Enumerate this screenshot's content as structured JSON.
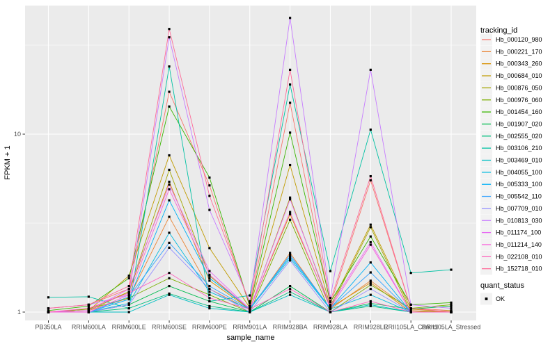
{
  "chart_data": {
    "type": "line",
    "title": "",
    "xlabel": "sample_name",
    "ylabel": "FPKM + 1",
    "y_scale": "log10",
    "ylim_approx": [
      0.9,
      53
    ],
    "grid": "on",
    "panel_bg": "#EBEBEB",
    "grid_color": "#FFFFFF",
    "tick_text_color": "#4D4D4D",
    "axis_title_color": "#000000",
    "legend_key_bg": "#F2F2F2",
    "point_color": "#000000",
    "point_shape": "filled-square",
    "legend_position": "right",
    "y_ticks": [
      {
        "label": "1",
        "value": 1
      },
      {
        "label": "10",
        "value": 10
      }
    ],
    "y_minor_gridlines": [
      3.162,
      31.623
    ],
    "x_categories": [
      "PB350LA",
      "RRIM600LA",
      "RRIM600LE",
      "RRIM600SE",
      "RRIM600PE",
      "RRIM901LA",
      "RRIM928BA",
      "RRIM928LA",
      "RRIM928LE",
      "RRII105LA_Control",
      "RRII105LA_Stressed"
    ],
    "legend_title": "tracking_id",
    "legend2_title": "quant_status",
    "legend2_items": [
      {
        "label": "OK",
        "symbol": "black-square"
      }
    ],
    "series": [
      {
        "name": "Hb_000120_980",
        "color": "#F8766D",
        "values": [
          1.05,
          1.1,
          1.35,
          17.3,
          5.15,
          1.08,
          15.0,
          1.1,
          5.5,
          1.05,
          1.02
        ]
      },
      {
        "name": "Hb_000221_170",
        "color": "#EA8331",
        "values": [
          1.0,
          1.02,
          1.2,
          3.43,
          1.35,
          1.03,
          2.15,
          1.04,
          1.5,
          1.02,
          1.0
        ]
      },
      {
        "name": "Hb_000343_260",
        "color": "#D89000",
        "values": [
          1.0,
          1.04,
          1.3,
          5.4,
          1.5,
          1.04,
          3.55,
          1.06,
          1.46,
          1.0,
          1.0
        ]
      },
      {
        "name": "Hb_000684_010",
        "color": "#C09B00",
        "values": [
          1.0,
          1.02,
          1.6,
          7.6,
          2.29,
          1.06,
          6.7,
          1.08,
          3.1,
          1.04,
          1.0
        ]
      },
      {
        "name": "Hb_000876_050",
        "color": "#A3A500",
        "values": [
          1.0,
          1.02,
          1.3,
          6.3,
          1.6,
          1.03,
          4.4,
          1.05,
          3.0,
          1.0,
          1.02
        ]
      },
      {
        "name": "Hb_000976_060",
        "color": "#7CAE00",
        "values": [
          1.0,
          1.04,
          1.2,
          1.55,
          1.25,
          1.0,
          3.3,
          1.0,
          1.42,
          1.05,
          1.1
        ]
      },
      {
        "name": "Hb_001454_160",
        "color": "#39B600",
        "values": [
          1.02,
          1.08,
          1.55,
          14.3,
          5.7,
          1.08,
          10.2,
          1.14,
          2.66,
          1.1,
          1.13
        ]
      },
      {
        "name": "Hb_001907_020",
        "color": "#00BB4E",
        "values": [
          1.0,
          1.0,
          1.1,
          1.4,
          1.15,
          1.0,
          1.4,
          1.0,
          1.12,
          1.04,
          1.08
        ]
      },
      {
        "name": "Hb_002555_020",
        "color": "#00BF7D",
        "values": [
          1.0,
          1.0,
          1.05,
          1.27,
          1.08,
          1.0,
          1.3,
          1.0,
          1.08,
          1.0,
          1.0
        ]
      },
      {
        "name": "Hb_003106_210",
        "color": "#00C1A3",
        "values": [
          1.21,
          1.22,
          1.05,
          24.0,
          1.15,
          1.24,
          19.0,
          1.7,
          10.6,
          1.66,
          1.73
        ]
      },
      {
        "name": "Hb_003469_010",
        "color": "#00BFC4",
        "values": [
          1.0,
          1.0,
          1.0,
          1.25,
          1.05,
          1.0,
          1.25,
          1.0,
          1.1,
          1.0,
          1.0
        ]
      },
      {
        "name": "Hb_004055_100",
        "color": "#00BAE0",
        "values": [
          1.0,
          1.0,
          1.12,
          2.79,
          1.3,
          1.04,
          2.0,
          1.04,
          1.25,
          1.0,
          1.0
        ]
      },
      {
        "name": "Hb_005333_100",
        "color": "#00B0F6",
        "values": [
          1.0,
          1.0,
          1.18,
          4.25,
          1.55,
          1.05,
          2.05,
          1.05,
          1.9,
          1.0,
          1.0
        ]
      },
      {
        "name": "Hb_005542_110",
        "color": "#35A2FF",
        "values": [
          1.0,
          1.0,
          1.22,
          2.45,
          1.4,
          1.04,
          2.1,
          1.05,
          1.67,
          1.0,
          1.0
        ]
      },
      {
        "name": "Hb_007709_010",
        "color": "#9590FF",
        "values": [
          1.0,
          1.0,
          1.1,
          2.3,
          1.35,
          1.0,
          1.95,
          1.0,
          1.35,
          1.0,
          1.0
        ]
      },
      {
        "name": "Hb_010813_030",
        "color": "#C77CFF",
        "values": [
          1.05,
          1.1,
          1.25,
          35.0,
          3.75,
          1.15,
          45.0,
          1.2,
          23.0,
          1.1,
          1.05
        ]
      },
      {
        "name": "Hb_011174_100",
        "color": "#E76BF3",
        "values": [
          1.0,
          1.02,
          1.35,
          5.2,
          1.7,
          1.04,
          4.3,
          1.08,
          2.47,
          1.0,
          1.0
        ]
      },
      {
        "name": "Hb_011214_140",
        "color": "#FA62DB",
        "values": [
          1.0,
          1.0,
          1.25,
          4.9,
          1.62,
          1.04,
          3.65,
          1.05,
          2.39,
          1.0,
          1.0
        ]
      },
      {
        "name": "Hb_022108_010",
        "color": "#FF62BC",
        "values": [
          1.0,
          1.05,
          1.28,
          1.66,
          1.2,
          1.04,
          1.35,
          1.0,
          1.15,
          1.0,
          1.0
        ]
      },
      {
        "name": "Hb_152718_010",
        "color": "#FF6A98",
        "values": [
          1.05,
          1.1,
          1.4,
          39.0,
          4.5,
          1.12,
          23.0,
          1.15,
          5.8,
          1.05,
          1.0
        ]
      }
    ]
  }
}
